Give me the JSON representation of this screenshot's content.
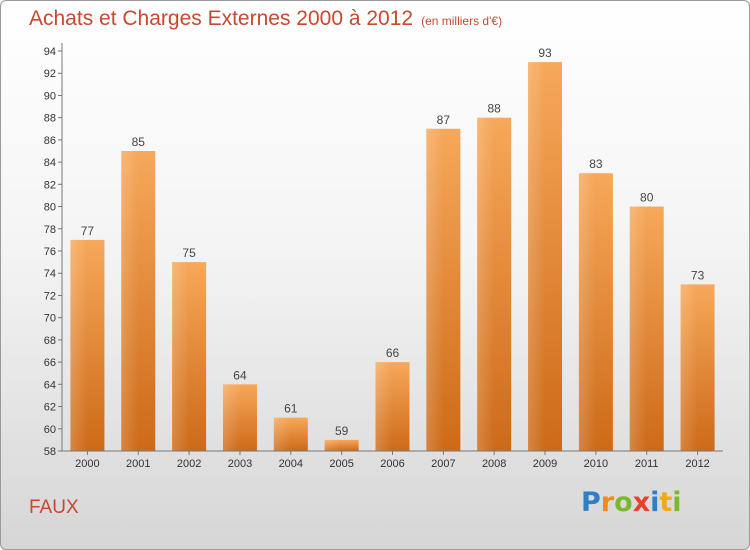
{
  "header": {
    "title": "Achats et Charges Externes 2000 à 2012",
    "subtitle": "(en milliers d'€)"
  },
  "footer": {
    "town": "FAUX",
    "logo": {
      "letters": [
        "P",
        "r",
        "o",
        "x",
        "i",
        "t",
        "i"
      ],
      "colors": [
        "#2e7fc8",
        "#f08a1c",
        "#7cb82f",
        "#e8402a",
        "#2e7fc8",
        "#f0a81c",
        "#7cb82f"
      ]
    }
  },
  "chart_data": {
    "type": "bar",
    "categories": [
      "2000",
      "2001",
      "2002",
      "2003",
      "2004",
      "2005",
      "2006",
      "2007",
      "2008",
      "2009",
      "2010",
      "2011",
      "2012"
    ],
    "values": [
      77,
      85,
      75,
      64,
      61,
      59,
      66,
      87,
      88,
      93,
      83,
      80,
      73
    ],
    "ylim": [
      58,
      94
    ],
    "yticks": [
      58,
      60,
      62,
      64,
      66,
      68,
      70,
      72,
      74,
      76,
      78,
      80,
      82,
      84,
      86,
      88,
      90,
      92,
      94
    ],
    "grid": false,
    "bar_color": "#f0923a"
  }
}
